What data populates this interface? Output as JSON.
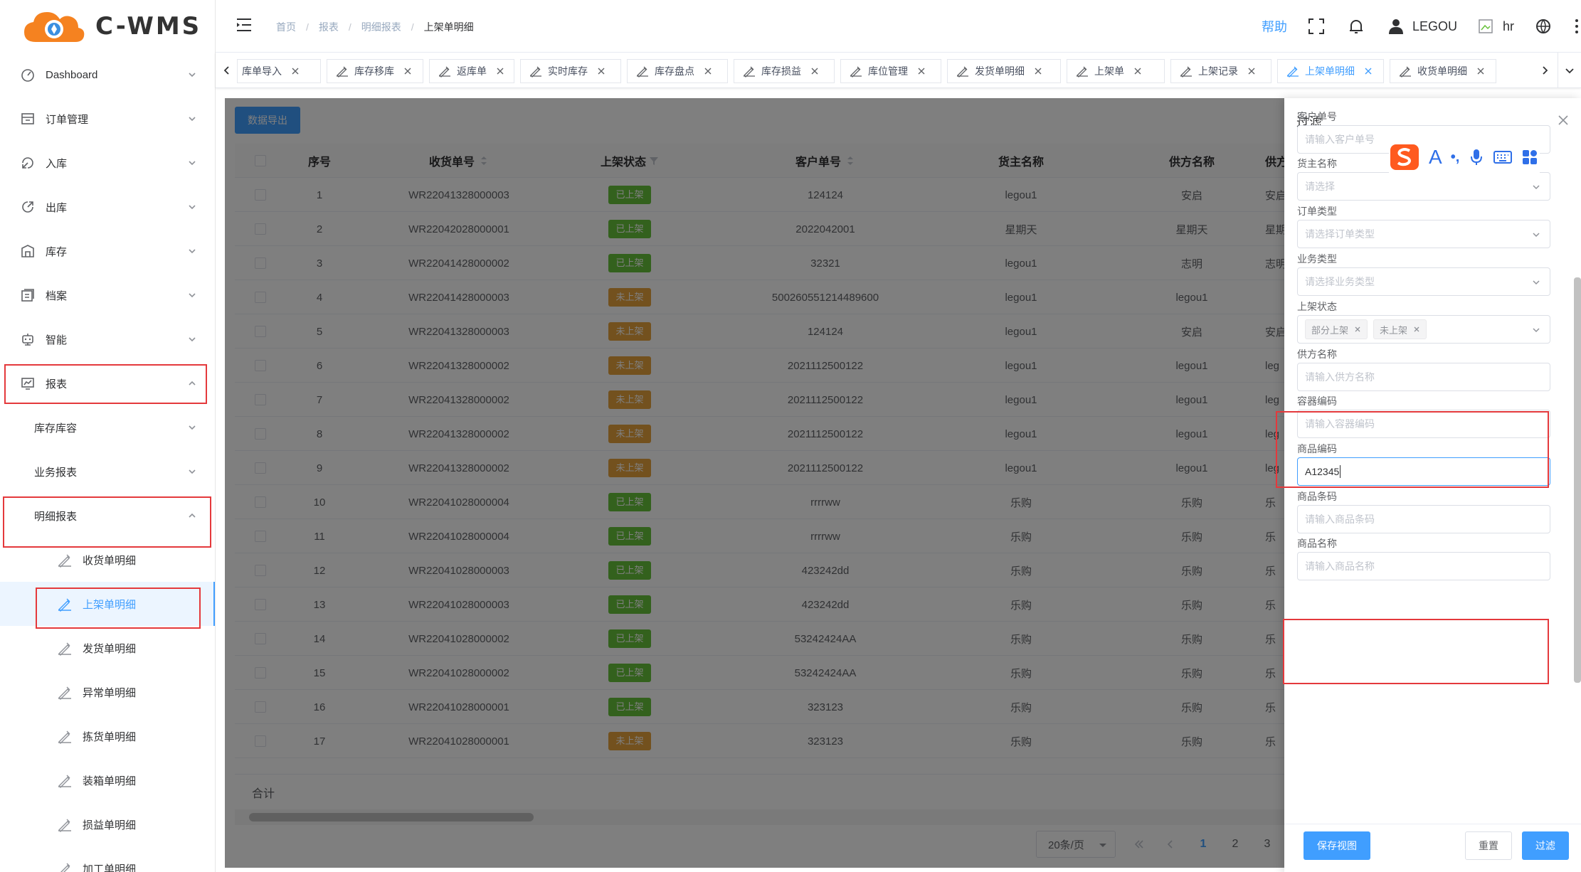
{
  "brand": {
    "name": "C-WMS"
  },
  "sidebar": {
    "items": [
      {
        "label": "Dashboard",
        "icon": "dashboard-icon"
      },
      {
        "label": "订单管理",
        "icon": "order-icon"
      },
      {
        "label": "入库",
        "icon": "inbound-icon"
      },
      {
        "label": "出库",
        "icon": "outbound-icon"
      },
      {
        "label": "库存",
        "icon": "inventory-icon"
      },
      {
        "label": "档案",
        "icon": "archive-icon"
      },
      {
        "label": "智能",
        "icon": "robot-icon"
      },
      {
        "label": "报表",
        "icon": "report-icon"
      }
    ],
    "report_children": [
      {
        "label": "库存库容"
      },
      {
        "label": "业务报表"
      },
      {
        "label": "明细报表"
      }
    ],
    "detail_children": [
      {
        "label": "收货单明细"
      },
      {
        "label": "上架单明细"
      },
      {
        "label": "发货单明细"
      },
      {
        "label": "异常单明细"
      },
      {
        "label": "拣货单明细"
      },
      {
        "label": "装箱单明细"
      },
      {
        "label": "损益单明细"
      },
      {
        "label": "加工单明细"
      }
    ]
  },
  "header": {
    "breadcrumb": [
      "首页",
      "报表",
      "明细报表",
      "上架单明细"
    ],
    "help": "帮助",
    "username": "LEGOU",
    "user2": "hr"
  },
  "tabs": [
    {
      "label": "库单导入"
    },
    {
      "label": "库存移库"
    },
    {
      "label": "返库单"
    },
    {
      "label": "实时库存"
    },
    {
      "label": "库存盘点"
    },
    {
      "label": "库存损益"
    },
    {
      "label": "库位管理"
    },
    {
      "label": "发货单明细"
    },
    {
      "label": "上架单"
    },
    {
      "label": "上架记录"
    },
    {
      "label": "上架单明细",
      "active": true
    },
    {
      "label": "收货单明细"
    }
  ],
  "toolbar": {
    "export": "数据导出"
  },
  "table": {
    "headers": [
      "序号",
      "收货单号",
      "上架状态",
      "客户单号",
      "货主名称",
      "供方名称",
      "供方"
    ],
    "rows": [
      {
        "no": "1",
        "receipt": "WR22041328000003",
        "status": "已上架",
        "done": true,
        "cust": "124124",
        "owner": "legou1",
        "supplier": "安启",
        "sup2": "安启"
      },
      {
        "no": "2",
        "receipt": "WR22042028000001",
        "status": "已上架",
        "done": true,
        "cust": "2022042001",
        "owner": "星期天",
        "supplier": "星期天",
        "sup2": "星期"
      },
      {
        "no": "3",
        "receipt": "WR22041428000002",
        "status": "已上架",
        "done": true,
        "cust": "32321",
        "owner": "legou1",
        "supplier": "志明",
        "sup2": "志明"
      },
      {
        "no": "4",
        "receipt": "WR22041428000003",
        "status": "未上架",
        "done": false,
        "cust": "500260551214489600",
        "owner": "legou1",
        "supplier": "legou1",
        "sup2": ""
      },
      {
        "no": "5",
        "receipt": "WR22041328000003",
        "status": "未上架",
        "done": false,
        "cust": "124124",
        "owner": "legou1",
        "supplier": "安启",
        "sup2": "安启"
      },
      {
        "no": "6",
        "receipt": "WR22041328000002",
        "status": "未上架",
        "done": false,
        "cust": "2021112500122",
        "owner": "legou1",
        "supplier": "legou1",
        "sup2": "leg"
      },
      {
        "no": "7",
        "receipt": "WR22041328000002",
        "status": "未上架",
        "done": false,
        "cust": "2021112500122",
        "owner": "legou1",
        "supplier": "legou1",
        "sup2": "leg"
      },
      {
        "no": "8",
        "receipt": "WR22041328000002",
        "status": "未上架",
        "done": false,
        "cust": "2021112500122",
        "owner": "legou1",
        "supplier": "legou1",
        "sup2": "leg"
      },
      {
        "no": "9",
        "receipt": "WR22041328000002",
        "status": "未上架",
        "done": false,
        "cust": "2021112500122",
        "owner": "legou1",
        "supplier": "legou1",
        "sup2": "leg"
      },
      {
        "no": "10",
        "receipt": "WR22041028000004",
        "status": "已上架",
        "done": true,
        "cust": "rrrrww",
        "owner": "乐购",
        "supplier": "乐购",
        "sup2": "乐"
      },
      {
        "no": "11",
        "receipt": "WR22041028000004",
        "status": "已上架",
        "done": true,
        "cust": "rrrrww",
        "owner": "乐购",
        "supplier": "乐购",
        "sup2": "乐"
      },
      {
        "no": "12",
        "receipt": "WR22041028000003",
        "status": "已上架",
        "done": true,
        "cust": "423242dd",
        "owner": "乐购",
        "supplier": "乐购",
        "sup2": "乐"
      },
      {
        "no": "13",
        "receipt": "WR22041028000003",
        "status": "已上架",
        "done": true,
        "cust": "423242dd",
        "owner": "乐购",
        "supplier": "乐购",
        "sup2": "乐"
      },
      {
        "no": "14",
        "receipt": "WR22041028000002",
        "status": "已上架",
        "done": true,
        "cust": "53242424AA",
        "owner": "乐购",
        "supplier": "乐购",
        "sup2": "乐"
      },
      {
        "no": "15",
        "receipt": "WR22041028000002",
        "status": "已上架",
        "done": true,
        "cust": "53242424AA",
        "owner": "乐购",
        "supplier": "乐购",
        "sup2": "乐"
      },
      {
        "no": "16",
        "receipt": "WR22041028000001",
        "status": "已上架",
        "done": true,
        "cust": "323123",
        "owner": "乐购",
        "supplier": "乐购",
        "sup2": "乐"
      },
      {
        "no": "17",
        "receipt": "WR22041028000001",
        "status": "未上架",
        "done": false,
        "cust": "323123",
        "owner": "乐购",
        "supplier": "乐购",
        "sup2": "乐"
      }
    ],
    "summary": "合计"
  },
  "pagination": {
    "page_size": "20条/页",
    "pages": [
      "1",
      "2",
      "3"
    ],
    "current": "1"
  },
  "filter": {
    "title": "过滤",
    "fields": [
      {
        "label": "客户单号",
        "placeholder": "请输入客户单号",
        "type": "input"
      },
      {
        "label": "货主名称",
        "placeholder": "请选择",
        "type": "select"
      },
      {
        "label": "订单类型",
        "placeholder": "请选择订单类型",
        "type": "select"
      },
      {
        "label": "业务类型",
        "placeholder": "请选择业务类型",
        "type": "select"
      },
      {
        "label": "上架状态",
        "type": "multiselect",
        "chips": [
          "部分上架",
          "未上架"
        ]
      },
      {
        "label": "供方名称",
        "placeholder": "请输入供方名称",
        "type": "input"
      },
      {
        "label": "容器编码",
        "placeholder": "请输入容器编码",
        "type": "input"
      },
      {
        "label": "商品编码",
        "value": "A12345",
        "type": "input",
        "focused": true
      },
      {
        "label": "商品条码",
        "placeholder": "请输入商品条码",
        "type": "input"
      },
      {
        "label": "商品名称",
        "placeholder": "请输入商品名称",
        "type": "input"
      }
    ],
    "buttons": {
      "save_view": "保存视图",
      "reset": "重置",
      "apply": "过滤"
    }
  },
  "ime": {
    "letter": "A",
    "punct": "•,"
  }
}
